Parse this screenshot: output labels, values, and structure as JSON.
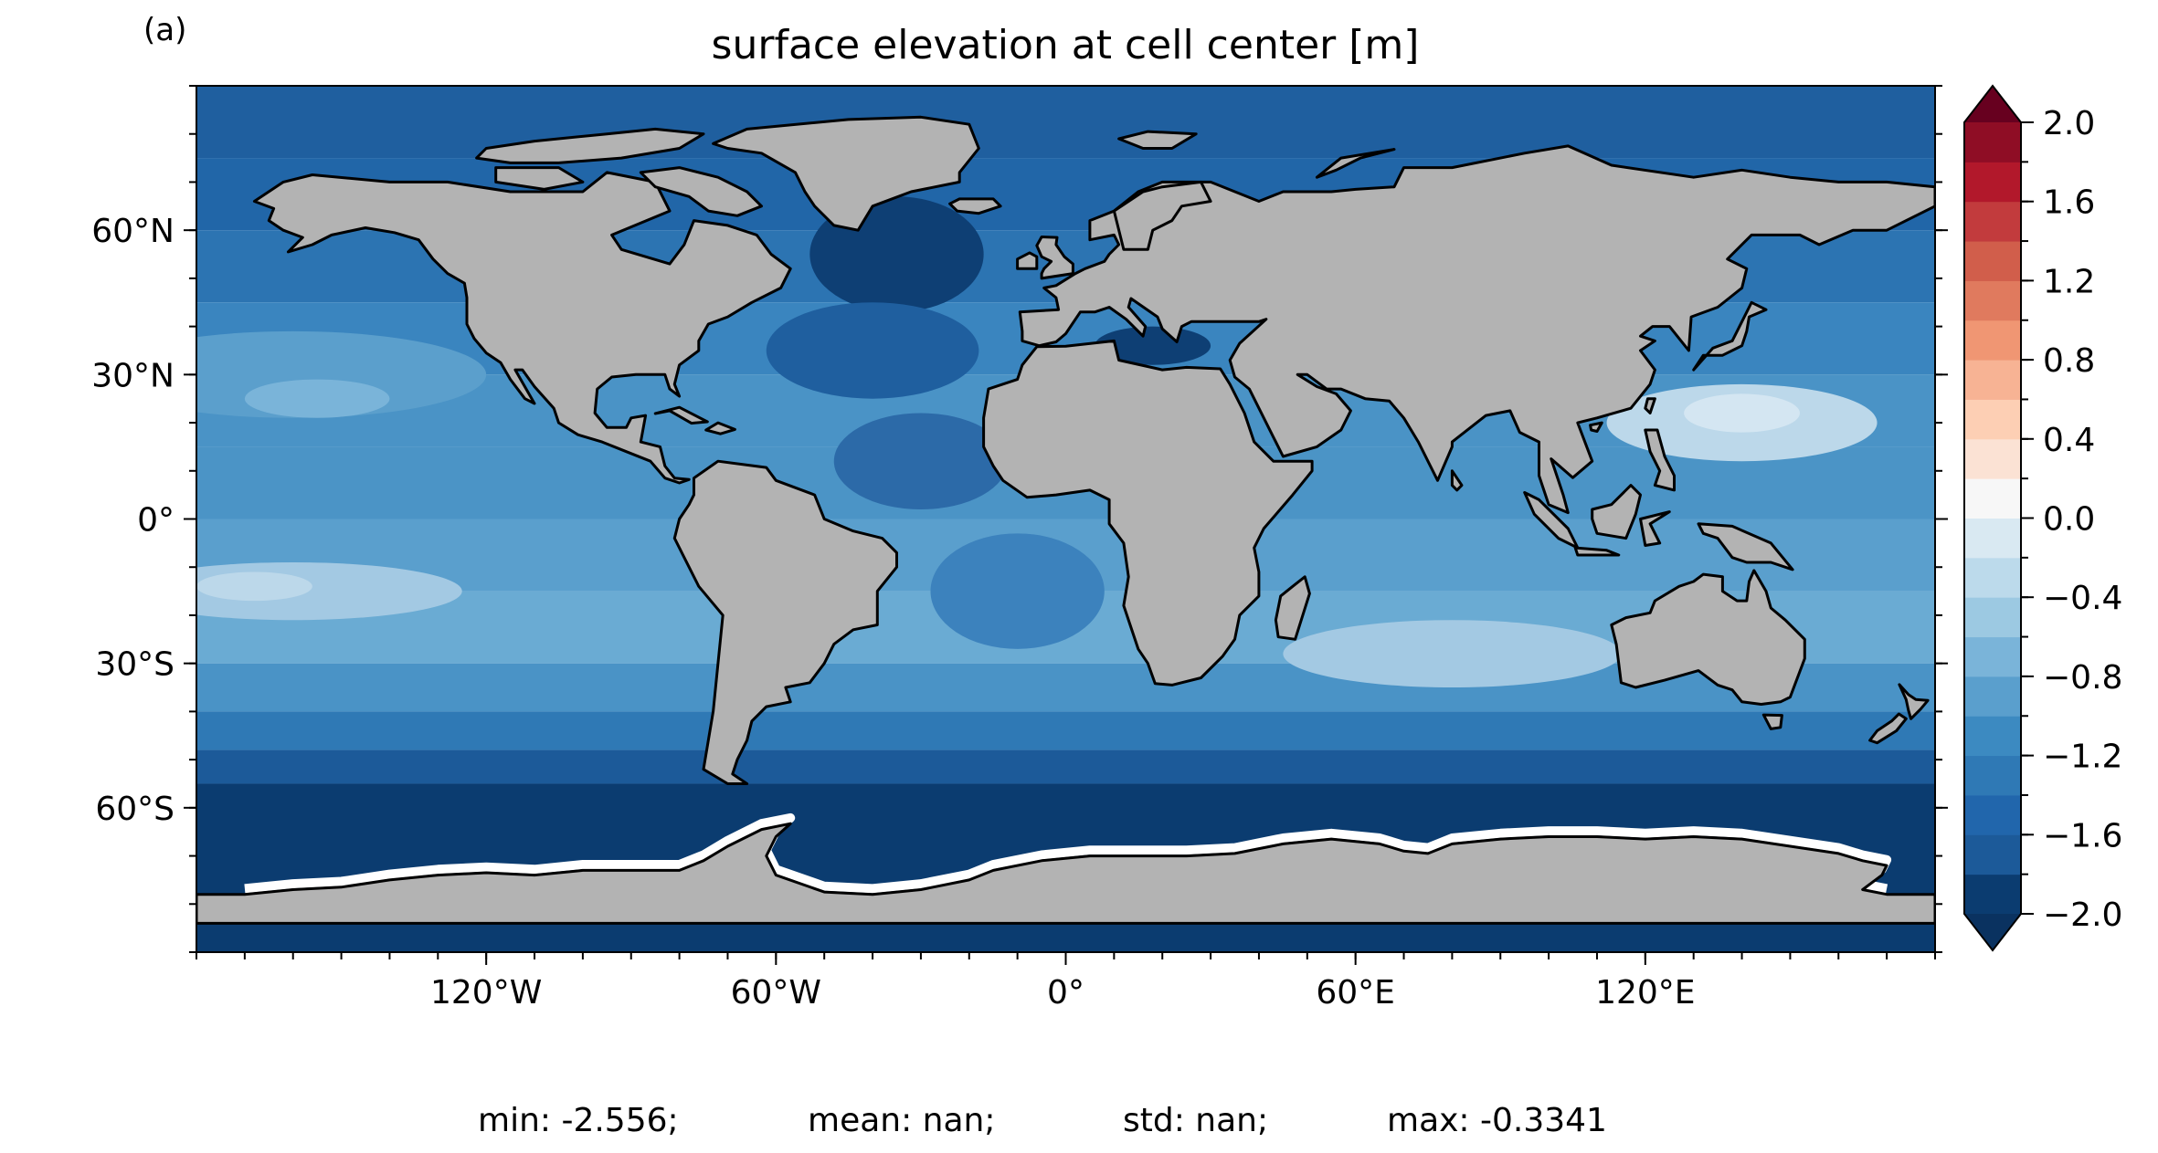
{
  "figure": {
    "panel_label": "(a)",
    "title": "surface elevation at cell center [m]",
    "stats": {
      "min": "min: -2.556;",
      "mean": "mean: nan;",
      "std": "std: nan;",
      "max": "max: -0.3341"
    }
  },
  "map": {
    "projection": "equirectangular",
    "lon_range": [
      -180,
      180
    ],
    "lat_range": [
      -90,
      90
    ],
    "land_color": "#b3b3b3",
    "coastline_color": "#000000",
    "missing_color": "#ffffff",
    "lon_ticks": [
      {
        "lon": -120,
        "label": "120°W"
      },
      {
        "lon": -60,
        "label": "60°W"
      },
      {
        "lon": 0,
        "label": "0°"
      },
      {
        "lon": 60,
        "label": "60°E"
      },
      {
        "lon": 120,
        "label": "120°E"
      }
    ],
    "lat_ticks": [
      {
        "lat": 60,
        "label": "60°N"
      },
      {
        "lat": 30,
        "label": "30°N"
      },
      {
        "lat": 0,
        "label": "0°"
      },
      {
        "lat": -30,
        "label": "30°S"
      },
      {
        "lat": -60,
        "label": "60°S"
      }
    ],
    "minor_lon_step": 10,
    "minor_lat_step": 10,
    "ocean_bands": [
      {
        "lat_from": 90,
        "lat_to": 75,
        "color": "#1f5f9f"
      },
      {
        "lat_from": 75,
        "lat_to": 60,
        "color": "#2166a8"
      },
      {
        "lat_from": 60,
        "lat_to": 45,
        "color": "#2c74b2"
      },
      {
        "lat_from": 45,
        "lat_to": 30,
        "color": "#3a85bf"
      },
      {
        "lat_from": 30,
        "lat_to": 15,
        "color": "#4a93c6"
      },
      {
        "lat_from": 15,
        "lat_to": 0,
        "color": "#4b94c6"
      },
      {
        "lat_from": 0,
        "lat_to": -15,
        "color": "#5a9fcd"
      },
      {
        "lat_from": -15,
        "lat_to": -30,
        "color": "#6aabd3"
      },
      {
        "lat_from": -30,
        "lat_to": -40,
        "color": "#4a93c6"
      },
      {
        "lat_from": -40,
        "lat_to": -48,
        "color": "#2f79b5"
      },
      {
        "lat_from": -48,
        "lat_to": -55,
        "color": "#1c5a99"
      },
      {
        "lat_from": -55,
        "lat_to": -90,
        "color": "#0b3c70"
      }
    ],
    "ocean_patches": [
      {
        "name": "north-atlantic-low",
        "lon": -35,
        "lat": 55,
        "rx": 18,
        "ry": 12,
        "color": "#0e3f74"
      },
      {
        "name": "north-atlantic-mid",
        "lon": -40,
        "lat": 35,
        "rx": 22,
        "ry": 10,
        "color": "#1f5f9f"
      },
      {
        "name": "tropical-atlantic",
        "lon": -30,
        "lat": 12,
        "rx": 18,
        "ry": 10,
        "color": "#2c6aa8"
      },
      {
        "name": "south-atlantic",
        "lon": -10,
        "lat": -15,
        "rx": 18,
        "ry": 12,
        "color": "#3c82bd"
      },
      {
        "name": "west-pacific-high",
        "lon": 140,
        "lat": 20,
        "rx": 28,
        "ry": 8,
        "color": "#bcd8ea"
      },
      {
        "name": "west-pacific-high-core",
        "lon": 140,
        "lat": 22,
        "rx": 12,
        "ry": 4,
        "color": "#d4e6f2"
      },
      {
        "name": "south-pacific-high",
        "lon": -160,
        "lat": -15,
        "rx": 35,
        "ry": 6,
        "color": "#a3c9e3"
      },
      {
        "name": "south-pacific-high-core",
        "lon": -168,
        "lat": -14,
        "rx": 12,
        "ry": 3,
        "color": "#bcd8ea"
      },
      {
        "name": "south-indian-high",
        "lon": 80,
        "lat": -28,
        "rx": 35,
        "ry": 7,
        "color": "#a3c9e3"
      },
      {
        "name": "north-pacific-mid",
        "lon": -160,
        "lat": 30,
        "rx": 40,
        "ry": 9,
        "color": "#5b9fcc"
      },
      {
        "name": "north-pacific-high",
        "lon": -155,
        "lat": 25,
        "rx": 15,
        "ry": 4,
        "color": "#7ab4d9"
      },
      {
        "name": "mediterranean",
        "lon": 18,
        "lat": 36,
        "rx": 12,
        "ry": 4,
        "color": "#0e3f74"
      }
    ]
  },
  "colorbar": {
    "min": -2.0,
    "max": 2.0,
    "step": 0.2,
    "extend": "both",
    "tick_labels": [
      "2.0",
      "1.6",
      "1.2",
      "0.8",
      "0.4",
      "0.0",
      "−0.4",
      "−0.8",
      "−1.2",
      "−1.6",
      "−2.0"
    ],
    "tick_values": [
      2.0,
      1.6,
      1.2,
      0.8,
      0.4,
      0.0,
      -0.4,
      -0.8,
      -1.2,
      -1.6,
      -2.0
    ],
    "colors_bottom_to_top": [
      "#0b3c70",
      "#1c5a99",
      "#2166ac",
      "#2f79b5",
      "#3c8ac1",
      "#5a9fcd",
      "#7ab4d9",
      "#9cc9e2",
      "#bcdaeb",
      "#d9e9f2",
      "#f7f7f7",
      "#fbe2d4",
      "#fdcfb4",
      "#f7b394",
      "#f09673",
      "#e07a5e",
      "#d15e4b",
      "#c23b3d",
      "#b2182b",
      "#8f0d25"
    ],
    "under_color": "#0a3260",
    "over_color": "#67001f"
  }
}
